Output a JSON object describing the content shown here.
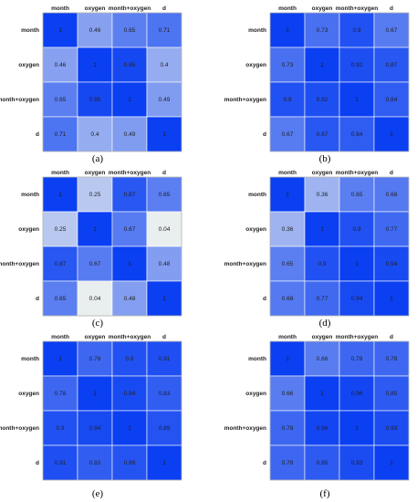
{
  "labels": [
    "month",
    "oxygen",
    "month+oxygen",
    "d"
  ],
  "chart_data": [
    {
      "type": "heatmap",
      "caption": "(a)",
      "row_labels": [
        "month",
        "oxygen",
        "month+oxygen",
        "d"
      ],
      "col_labels": [
        "month",
        "oxygen",
        "month+oxygen",
        "d"
      ],
      "values": [
        [
          1,
          0.46,
          0.65,
          0.71
        ],
        [
          0.46,
          1,
          0.95,
          0.4
        ],
        [
          0.65,
          0.95,
          1,
          0.49
        ],
        [
          0.71,
          0.4,
          0.49,
          1
        ]
      ]
    },
    {
      "type": "heatmap",
      "caption": "(b)",
      "row_labels": [
        "month",
        "oxygen",
        "month+oxygen",
        "d"
      ],
      "col_labels": [
        "month",
        "oxygen",
        "month+oxygen",
        "d"
      ],
      "values": [
        [
          1,
          0.73,
          0.9,
          0.67
        ],
        [
          0.73,
          1,
          0.92,
          0.87
        ],
        [
          0.9,
          0.92,
          1,
          0.84
        ],
        [
          0.67,
          0.87,
          0.84,
          1
        ]
      ]
    },
    {
      "type": "heatmap",
      "caption": "(c)",
      "row_labels": [
        "month",
        "oxygen",
        "month+oxygen",
        "d"
      ],
      "col_labels": [
        "month",
        "oxygen",
        "month+oxygen",
        "d"
      ],
      "values": [
        [
          1,
          0.25,
          0.87,
          0.65
        ],
        [
          0.25,
          1,
          0.67,
          0.04
        ],
        [
          0.87,
          0.67,
          1,
          0.48
        ],
        [
          0.65,
          0.04,
          0.48,
          1
        ]
      ]
    },
    {
      "type": "heatmap",
      "caption": "(d)",
      "row_labels": [
        "month",
        "oxygen",
        "month+oxygen",
        "d"
      ],
      "col_labels": [
        "month",
        "oxygen",
        "month+oxygen",
        "d"
      ],
      "values": [
        [
          1,
          0.36,
          0.65,
          0.68
        ],
        [
          0.36,
          1,
          0.9,
          0.77
        ],
        [
          0.65,
          0.9,
          1,
          0.94
        ],
        [
          0.68,
          0.77,
          0.94,
          1
        ]
      ]
    },
    {
      "type": "heatmap",
      "caption": "(e)",
      "row_labels": [
        "month",
        "oxygen",
        "month+oxygen",
        "d"
      ],
      "col_labels": [
        "month",
        "oxygen",
        "month+oxygen",
        "d"
      ],
      "values": [
        [
          1,
          0.78,
          0.9,
          0.91
        ],
        [
          0.78,
          1,
          0.94,
          0.83
        ],
        [
          0.9,
          0.94,
          1,
          0.89
        ],
        [
          0.91,
          0.83,
          0.89,
          1
        ]
      ]
    },
    {
      "type": "heatmap",
      "caption": "(f)",
      "row_labels": [
        "month",
        "oxygen",
        "month+oxygen",
        "d"
      ],
      "col_labels": [
        "month",
        "oxygen",
        "month+oxygen",
        "d"
      ],
      "values": [
        [
          1,
          0.66,
          0.78,
          0.78
        ],
        [
          0.66,
          1,
          0.96,
          0.85
        ],
        [
          0.78,
          0.96,
          1,
          0.93
        ],
        [
          0.78,
          0.85,
          0.93,
          1
        ]
      ]
    }
  ],
  "colors": {
    "low": "#f2f5ee",
    "high": "#0a3ff2",
    "border": "#999999"
  }
}
